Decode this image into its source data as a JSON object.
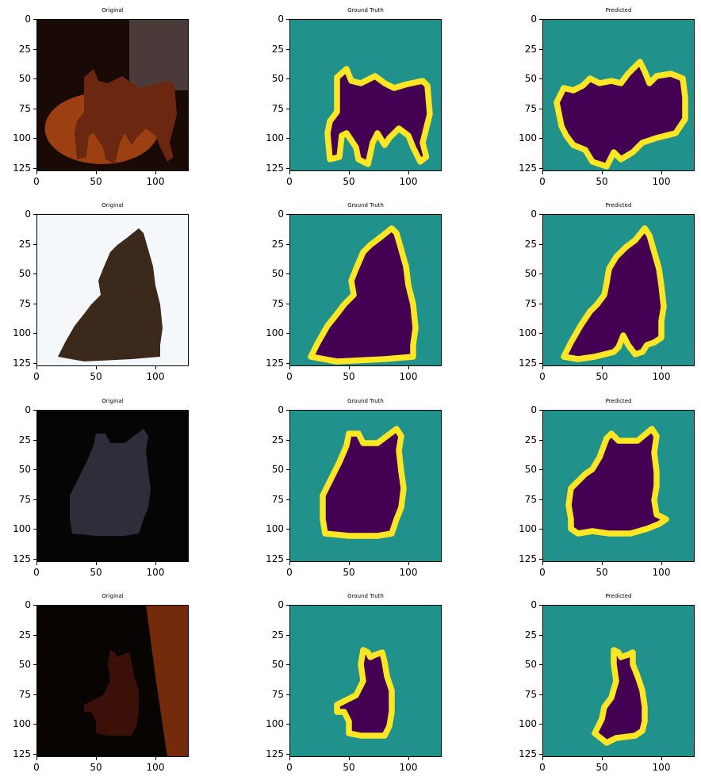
{
  "figure": {
    "rows": [
      {
        "panels": [
          {
            "kind": "photo",
            "title": "Original"
          },
          {
            "kind": "mask",
            "title": "Ground Truth"
          },
          {
            "kind": "mask",
            "title": "Predicted"
          }
        ]
      },
      {
        "panels": [
          {
            "kind": "photo",
            "title": "Original"
          },
          {
            "kind": "mask",
            "title": "Ground Truth"
          },
          {
            "kind": "mask",
            "title": "Predicted"
          }
        ]
      },
      {
        "panels": [
          {
            "kind": "photo",
            "title": "Original"
          },
          {
            "kind": "mask",
            "title": "Ground Truth"
          },
          {
            "kind": "mask",
            "title": "Predicted"
          }
        ]
      },
      {
        "panels": [
          {
            "kind": "photo",
            "title": "Original"
          },
          {
            "kind": "mask",
            "title": "Ground Truth"
          },
          {
            "kind": "mask",
            "title": "Predicted"
          }
        ]
      }
    ],
    "axes": {
      "x_ticks": [
        "0",
        "50",
        "100"
      ],
      "y_ticks": [
        "0",
        "25",
        "50",
        "75",
        "100",
        "125"
      ],
      "x_tick_values": [
        0,
        50,
        100
      ],
      "y_tick_values": [
        0,
        25,
        50,
        75,
        100,
        125
      ],
      "extent": [
        0,
        128
      ]
    },
    "colors": {
      "mask_background": "#21918c",
      "mask_border": "#fde725",
      "mask_foreground": "#440154"
    }
  }
}
